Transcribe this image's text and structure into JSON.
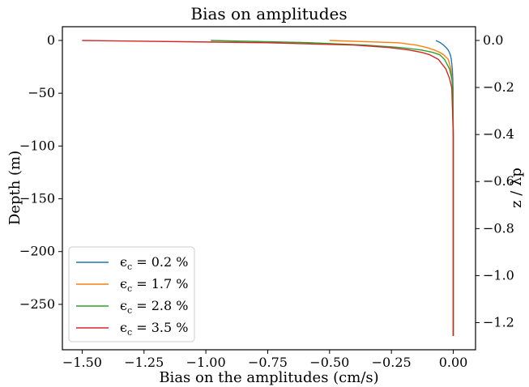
{
  "chart_data": {
    "type": "line",
    "title": "Bias on amplitudes",
    "xlabel": "Bias on the amplitudes (cm/s)",
    "ylabel": "Depth (m)",
    "ylabel_right": "z / λp",
    "xlim": [
      -1.58,
      0.09
    ],
    "ylim": [
      -293,
      13
    ],
    "ylim_right": [
      -1.3153,
      0.0584
    ],
    "x_ticks": [
      -1.5,
      -1.25,
      -1.0,
      -0.75,
      -0.5,
      -0.25,
      0.0
    ],
    "x_tick_labels": [
      "−1.50",
      "−1.25",
      "−1.00",
      "−0.75",
      "−0.50",
      "−0.25",
      "0.00"
    ],
    "y_ticks": [
      0,
      -50,
      -100,
      -150,
      -200,
      -250
    ],
    "y_tick_labels": [
      "0",
      "−50",
      "−100",
      "−150",
      "−200",
      "−250"
    ],
    "y_right_ticks": [
      0.0,
      -0.2,
      -0.4,
      -0.6,
      -0.8,
      -1.0,
      -1.2
    ],
    "y_right_tick_labels": [
      "0.0",
      "−0.2",
      "−0.4",
      "−0.6",
      "−0.8",
      "−1.0",
      "−1.2"
    ],
    "legend_position": "lower-left",
    "grid": false,
    "series": [
      {
        "name": "ϵc = 0.2 %",
        "legend_main": "ϵ",
        "legend_sub": "c",
        "legend_tail": " = 0.2 %",
        "color": "#1f77b4",
        "x": [
          -0.07,
          -0.052,
          -0.039,
          -0.029,
          -0.021,
          -0.016,
          -0.012,
          -0.008,
          -0.004,
          -0.002,
          -0.001,
          0.0,
          0.0
        ],
        "y": [
          0,
          -2.2,
          -4.4,
          -6.7,
          -9.0,
          -11.2,
          -13.5,
          -18,
          -27,
          -36,
          -45,
          -90,
          -280
        ]
      },
      {
        "name": "ϵc = 1.7 %",
        "legend_main": "ϵ",
        "legend_sub": "c",
        "legend_tail": " = 1.7 %",
        "color": "#ff7f0e",
        "x": [
          -0.5,
          -0.221,
          -0.15,
          -0.107,
          -0.077,
          -0.055,
          -0.039,
          -0.02,
          -0.01,
          -0.005,
          -0.002,
          0.0,
          0.0
        ],
        "y": [
          0,
          -2.2,
          -4.4,
          -6.7,
          -9.0,
          -11.2,
          -13.5,
          -18,
          -27,
          -36,
          -45,
          -90,
          -280
        ]
      },
      {
        "name": "ϵc = 2.8 %",
        "legend_main": "ϵ",
        "legend_sub": "c",
        "legend_tail": " = 2.8 %",
        "color": "#2ca02c",
        "x": [
          -0.98,
          -0.575,
          -0.355,
          -0.215,
          -0.13,
          -0.085,
          -0.055,
          -0.035,
          -0.015,
          -0.006,
          -0.002,
          0.0,
          0.0
        ],
        "y": [
          0,
          -2.2,
          -4.4,
          -6.7,
          -9.0,
          -11.2,
          -13.5,
          -18,
          -27,
          -36,
          -45,
          -90,
          -280
        ]
      },
      {
        "name": "ϵc = 3.5 %",
        "legend_main": "ϵ",
        "legend_sub": "c",
        "legend_tail": " = 3.5 %",
        "color": "#d62728",
        "x": [
          -1.5,
          -0.75,
          -0.4,
          -0.26,
          -0.18,
          -0.13,
          -0.095,
          -0.06,
          -0.03,
          -0.015,
          -0.006,
          0.0,
          0.0
        ],
        "y": [
          0,
          -2.2,
          -4.4,
          -6.7,
          -9.0,
          -11.2,
          -13.5,
          -18,
          -27,
          -36,
          -45,
          -90,
          -280
        ]
      }
    ]
  }
}
